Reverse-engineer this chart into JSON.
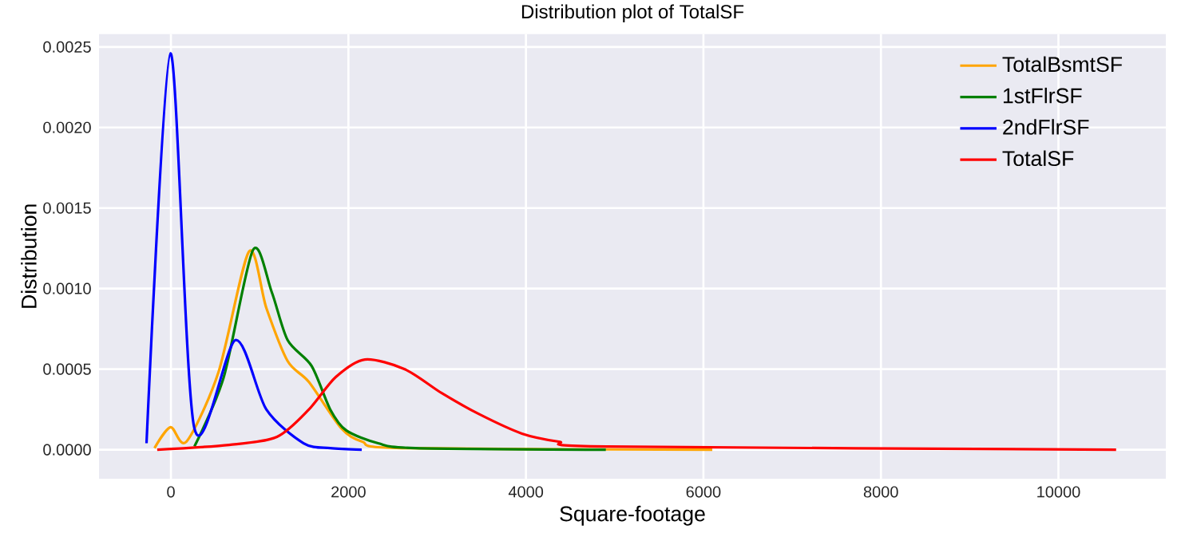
{
  "chart_data": {
    "type": "line",
    "title": "Distribution plot of TotalSF",
    "xlabel": "Square-footage",
    "ylabel": "Distribution",
    "series": [
      {
        "name": "TotalBsmtSF",
        "color": "#ffa500",
        "x": [
          -185,
          -5,
          175,
          535,
          880,
          1075,
          1315,
          1555,
          1915,
          2155,
          2600,
          6100
        ],
        "values": [
          1e-05,
          0.00014,
          5e-05,
          0.00048,
          0.00123,
          0.00088,
          0.00055,
          0.00042,
          0.000136,
          5e-05,
          1e-05,
          0
        ]
      },
      {
        "name": "1stFlrSF",
        "color": "#008000",
        "x": [
          265,
          595,
          925,
          1135,
          1315,
          1585,
          1795,
          1975,
          2335,
          2755,
          4900
        ],
        "values": [
          2e-05,
          0.00045,
          0.00124,
          0.00098,
          0.00068,
          0.00052,
          0.00025,
          0.00012,
          4e-05,
          1e-05,
          0
        ]
      },
      {
        "name": "2ndFlrSF",
        "color": "#0000ff",
        "x": [
          -275,
          -5,
          263,
          727,
          1075,
          1495,
          1795,
          2150
        ],
        "values": [
          4e-05,
          0.00246,
          0.000136,
          0.00068,
          0.00025,
          4e-05,
          1e-05,
          0
        ]
      },
      {
        "name": "TotalSF",
        "color": "#ff0000",
        "x": [
          -155,
          655,
          1195,
          1555,
          1855,
          2185,
          2635,
          3055,
          3475,
          3955,
          4370,
          4910,
          10650
        ],
        "values": [
          0,
          3e-05,
          8e-05,
          0.00025,
          0.00045,
          0.00056,
          0.0005,
          0.00035,
          0.00022,
          0.0001,
          5e-05,
          2e-05,
          0
        ]
      }
    ],
    "xlim": [
      -810,
      11210
    ],
    "ylim": [
      -0.00018,
      0.00258
    ],
    "xticks": [
      0,
      2000,
      4000,
      6000,
      8000,
      10000
    ],
    "yticks": [
      {
        "value": 0,
        "label": "0.0000"
      },
      {
        "value": 0.0005,
        "label": "0.0005"
      },
      {
        "value": 0.001,
        "label": "0.0010"
      },
      {
        "value": 0.0015,
        "label": "0.0015"
      },
      {
        "value": 0.002,
        "label": "0.0020"
      },
      {
        "value": 0.0025,
        "label": "0.0025"
      }
    ],
    "grid": true,
    "legend": "top right",
    "marker": "none",
    "line_style": "solid"
  }
}
